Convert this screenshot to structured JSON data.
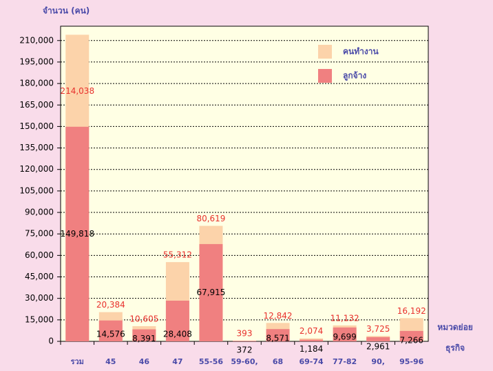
{
  "chart_data": {
    "type": "bar",
    "y_axis_label": "จำนวน (คน)",
    "x_axis_label": [
      "หมวดย่อย",
      "ธุรกิจ"
    ],
    "categories": [
      "รวม",
      "45",
      "46",
      "47",
      "55-56",
      "59-60,",
      "68",
      "69-74",
      "77-82",
      "90,",
      "95-96"
    ],
    "series": [
      {
        "name": "คนทำงาน",
        "color": "#fcd3aa",
        "label_color": "#e8302c",
        "values": [
          214038,
          20384,
          10605,
          55312,
          80619,
          393,
          12842,
          2074,
          11132,
          3725,
          16192
        ],
        "value_labels": [
          "214,038",
          "20,384",
          "10,605",
          "55,312",
          "80,619",
          "393",
          "12,842",
          "2,074",
          "11,132",
          "3,725",
          "16,192"
        ]
      },
      {
        "name": "ลูกจ้าง",
        "color": "#f08080",
        "label_color": "#000000",
        "values": [
          149818,
          14576,
          8391,
          28408,
          67915,
          372,
          8571,
          1184,
          9699,
          2961,
          7266
        ],
        "value_labels": [
          "149,818",
          "14,576",
          "8,391",
          "28,408",
          "67,915",
          "372",
          "8,571",
          "1,184",
          "9,699",
          "2,961",
          "7,266"
        ]
      }
    ],
    "ylim": [
      0,
      220000
    ],
    "yticks": [
      0,
      {
        "value": 15000,
        "label": "15,000"
      },
      {
        "value": 30000,
        "label": "30,000"
      },
      {
        "value": 45000,
        "label": "45,000"
      },
      {
        "value": 60000,
        "label": "60,000"
      },
      {
        "value": 75000,
        "label": "75,000"
      },
      {
        "value": 90000,
        "label": "90,000"
      },
      {
        "value": 105000,
        "label": "105,000"
      },
      {
        "value": 120000,
        "label": "120,000"
      },
      {
        "value": 135000,
        "label": "135,000"
      },
      {
        "value": 150000,
        "label": "150,000"
      },
      {
        "value": 165000,
        "label": "165,000"
      },
      {
        "value": 180000,
        "label": "180,000"
      },
      {
        "value": 195000,
        "label": "195,000"
      },
      {
        "value": 210000,
        "label": "210,000"
      }
    ],
    "grid": true,
    "legend": "upper right"
  }
}
